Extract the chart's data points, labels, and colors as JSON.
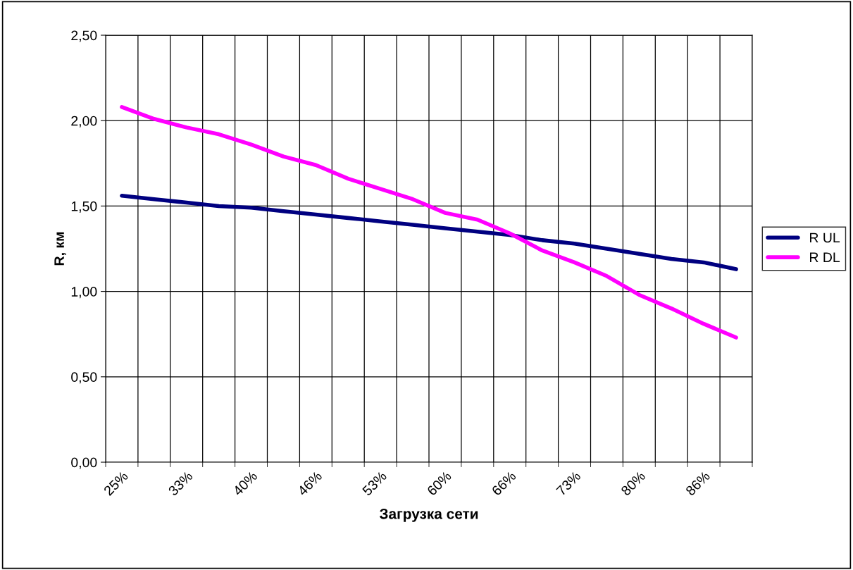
{
  "chart_data": {
    "type": "line",
    "xlabel": "Загрузка сети",
    "ylabel": "R, км",
    "categories": [
      "25%",
      null,
      "33%",
      null,
      "40%",
      null,
      "46%",
      null,
      "53%",
      null,
      "60%",
      null,
      "66%",
      null,
      "73%",
      null,
      "80%",
      null,
      "86%",
      null
    ],
    "series": [
      {
        "name": "R UL",
        "color": "#000080",
        "values": [
          1.56,
          1.54,
          1.52,
          1.5,
          1.49,
          1.47,
          1.45,
          1.43,
          1.41,
          1.39,
          1.37,
          1.35,
          1.33,
          1.3,
          1.28,
          1.25,
          1.22,
          1.19,
          1.17,
          1.13
        ]
      },
      {
        "name": "R DL",
        "color": "#ff00ff",
        "values": [
          2.08,
          2.01,
          1.96,
          1.92,
          1.86,
          1.79,
          1.74,
          1.66,
          1.6,
          1.54,
          1.46,
          1.42,
          1.34,
          1.24,
          1.17,
          1.09,
          0.98,
          0.9,
          0.81,
          0.73
        ]
      }
    ],
    "ylim": [
      0,
      2.5
    ],
    "yticks": [
      {
        "value": 0,
        "label": "0,00"
      },
      {
        "value": 0.5,
        "label": "0,50"
      },
      {
        "value": 1,
        "label": "1,00"
      },
      {
        "value": 1.5,
        "label": "1,50"
      },
      {
        "value": 2,
        "label": "2,00"
      },
      {
        "value": 2.5,
        "label": "2,50"
      }
    ],
    "grid": true,
    "legend": "right",
    "marker": "none",
    "line_style": "solid"
  }
}
